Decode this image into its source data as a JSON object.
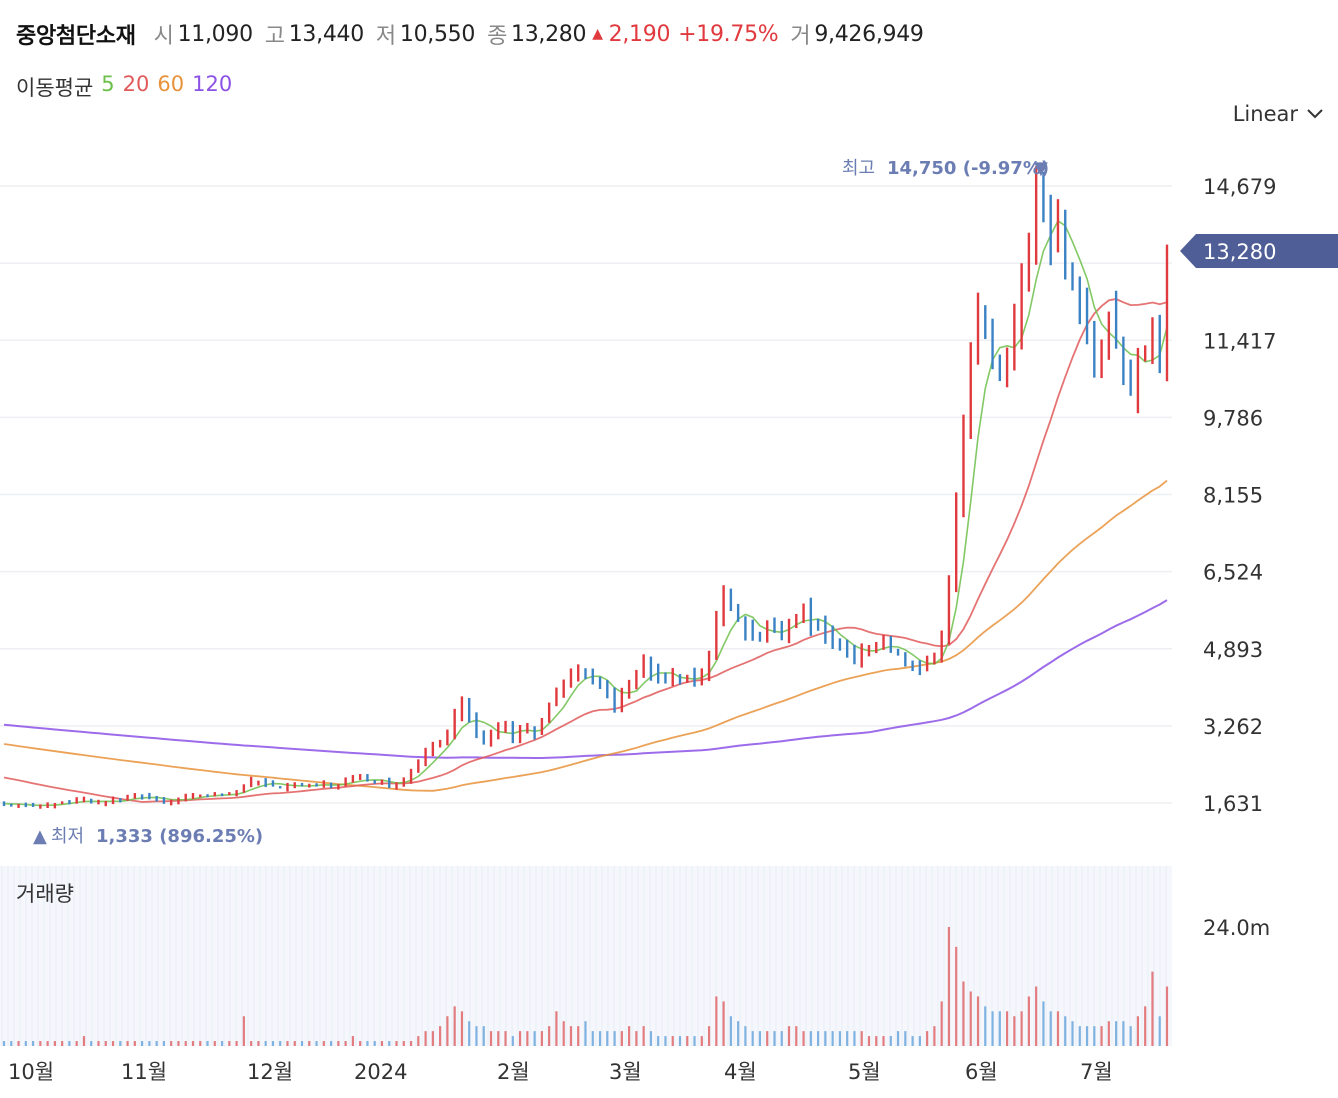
{
  "header": {
    "name": "중앙첨단소재",
    "open_label": "시",
    "open": "11,090",
    "high_label": "고",
    "high": "13,440",
    "low_label": "저",
    "low": "10,550",
    "close_label": "종",
    "close": "13,280",
    "change": "2,190",
    "change_pct": "+19.75%",
    "volume_label": "거",
    "volume": "9,426,949"
  },
  "ma_legend": {
    "title": "이동평균",
    "periods": [
      "5",
      "20",
      "60",
      "120"
    ]
  },
  "colors": {
    "up": "#e0393e",
    "down": "#3b82c4",
    "ma5": "#6cc04a",
    "ma20": "#e05a5a",
    "ma60": "#e8923a",
    "ma120": "#8c52e6",
    "price_tag": "#4f5e96",
    "annotation": "#6b7db3"
  },
  "scale_button": {
    "label": "Linear"
  },
  "volume_panel": {
    "title": "거래량",
    "axis_label": "24.0m"
  },
  "chart_data": {
    "type": "candlestick",
    "y_axis_ticks": [
      "1,631",
      "3,262",
      "4,893",
      "6,524",
      "8,155",
      "9,786",
      "11,417",
      "14,679"
    ],
    "y_tick_values": [
      1631,
      3262,
      4893,
      6524,
      8155,
      9786,
      11417,
      14679
    ],
    "ylim": [
      1400,
      15100
    ],
    "x_axis_labels": [
      "10월",
      "11월",
      "12월",
      "2024",
      "2월",
      "3월",
      "4월",
      "5월",
      "6월",
      "7월"
    ],
    "current_price_label": "13,280",
    "max_annotation": {
      "label": "최고",
      "value": "14,750 (-9.97%)"
    },
    "min_annotation": {
      "label": "최저",
      "value": "1,333 (896.25%)"
    },
    "volume_axis_max_label": "24.0m",
    "volume_axis_max": 24000000,
    "moving_averages": [
      "5",
      "20",
      "60",
      "120"
    ],
    "close": [
      1610,
      1590,
      1600,
      1570,
      1560,
      1580,
      1600,
      1620,
      1650,
      1640,
      1700,
      1690,
      1650,
      1640,
      1660,
      1700,
      1680,
      1750,
      1800,
      1760,
      1740,
      1700,
      1650,
      1680,
      1720,
      1750,
      1780,
      1800,
      1790,
      1800,
      1810,
      1820,
      1860,
      1980,
      2100,
      2080,
      2050,
      2000,
      1950,
      1980,
      2020,
      2000,
      2010,
      2000,
      2050,
      1990,
      2020,
      2100,
      2150,
      2200,
      2100,
      2050,
      2080,
      2000,
      2050,
      2120,
      2300,
      2500,
      2700,
      2800,
      2900,
      3100,
      3500,
      3800,
      3400,
      3100,
      2900,
      3100,
      3200,
      3300,
      3000,
      3150,
      3200,
      3100,
      3400,
      3700,
      4000,
      4100,
      4300,
      4500,
      4400,
      4250,
      4100,
      3900,
      3700,
      3900,
      4200,
      4300,
      4700,
      4400,
      4300,
      4200,
      4300,
      4250,
      4300,
      4200,
      4350,
      4800,
      5500,
      6000,
      5800,
      5500,
      5300,
      5200,
      5100,
      5400,
      5300,
      5200,
      5500,
      5600,
      5800,
      5400,
      5300,
      5200,
      5100,
      5000,
      4800,
      4700,
      4850,
      4900,
      5000,
      5050,
      4900,
      4800,
      4600,
      4500,
      4450,
      4600,
      4700,
      5200,
      6300,
      8000,
      9500,
      11000,
      12000,
      11500,
      11000,
      10800,
      11200,
      11800,
      12500,
      13500,
      14500,
      14200,
      13500,
      14000,
      13000,
      12800,
      12300,
      11500,
      11000,
      11200,
      11900,
      11600,
      10600,
      10300,
      11100,
      11200,
      11800,
      11090,
      13280
    ],
    "volume_ratio": [
      0.1,
      0.1,
      0.1,
      0.1,
      0.1,
      0.1,
      0.1,
      0.1,
      0.1,
      0.1,
      0.1,
      0.2,
      0.1,
      0.1,
      0.1,
      0.1,
      0.1,
      0.1,
      0.1,
      0.1,
      0.1,
      0.1,
      0.1,
      0.1,
      0.1,
      0.1,
      0.1,
      0.1,
      0.1,
      0.1,
      0.1,
      0.1,
      0.1,
      0.6,
      0.1,
      0.1,
      0.1,
      0.1,
      0.1,
      0.1,
      0.1,
      0.1,
      0.1,
      0.1,
      0.1,
      0.1,
      0.1,
      0.1,
      0.2,
      0.1,
      0.1,
      0.1,
      0.1,
      0.1,
      0.1,
      0.1,
      0.1,
      0.2,
      0.3,
      0.3,
      0.4,
      0.6,
      0.8,
      0.7,
      0.5,
      0.4,
      0.4,
      0.3,
      0.3,
      0.3,
      0.2,
      0.3,
      0.3,
      0.3,
      0.3,
      0.4,
      0.7,
      0.5,
      0.4,
      0.4,
      0.5,
      0.3,
      0.3,
      0.3,
      0.3,
      0.3,
      0.4,
      0.3,
      0.4,
      0.3,
      0.2,
      0.2,
      0.2,
      0.2,
      0.2,
      0.2,
      0.2,
      0.4,
      1.0,
      0.9,
      0.6,
      0.5,
      0.4,
      0.3,
      0.3,
      0.3,
      0.3,
      0.3,
      0.4,
      0.4,
      0.3,
      0.3,
      0.3,
      0.3,
      0.3,
      0.3,
      0.3,
      0.3,
      0.3,
      0.2,
      0.2,
      0.2,
      0.2,
      0.3,
      0.3,
      0.2,
      0.2,
      0.3,
      0.4,
      0.9,
      2.4,
      2.0,
      1.3,
      1.1,
      1.0,
      0.8,
      0.7,
      0.7,
      0.7,
      0.6,
      0.7,
      1.0,
      1.2,
      0.9,
      0.7,
      0.7,
      0.6,
      0.5,
      0.4,
      0.4,
      0.4,
      0.4,
      0.5,
      0.5,
      0.5,
      0.4,
      0.6,
      0.8,
      1.5,
      0.6,
      1.2
    ]
  }
}
